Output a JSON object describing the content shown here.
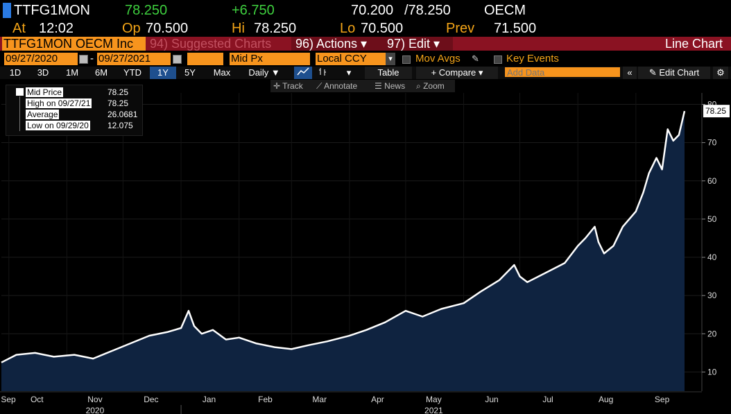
{
  "header": {
    "ticker": "TTFG1MON",
    "last": "78.250",
    "change": "+6.750",
    "bid": "70.200",
    "ask": "/78.250",
    "exchange": "OECM",
    "time_label": "At",
    "time": "12:02",
    "open_label": "Op",
    "open": "70.500",
    "high_label": "Hi",
    "high": "78.250",
    "low_label": "Lo",
    "low": "70.500",
    "prev_label": "Prev",
    "prev": "71.500"
  },
  "menubar": {
    "security": "TTFG1MON OECM Inc",
    "suggested": "94) Suggested Charts",
    "actions": "96) Actions ▾",
    "edit": "97) Edit ▾",
    "title": "Line Chart"
  },
  "settings": {
    "start_date": "09/27/2020",
    "dash": "-",
    "end_date": "09/27/2021",
    "field": "Mid Px",
    "currency": "Local CCY",
    "mov_avgs": "Mov Avgs",
    "key_events": "Key Events"
  },
  "periods": [
    "1D",
    "3D",
    "1M",
    "6M",
    "YTD",
    "1Y",
    "5Y",
    "Max"
  ],
  "frequency": "Daily ▼",
  "toolbar": {
    "table": "Table",
    "compare": "+ Compare ▾",
    "add_data_placeholder": "Add Data",
    "edit_chart": "Edit Chart",
    "track": "Track",
    "annotate": "Annotate",
    "news": "News",
    "zoom": "Zoom"
  },
  "legend": {
    "rows": [
      {
        "label": "Mid Price",
        "value": "78.25"
      },
      {
        "label": "High on 09/27/21",
        "value": "78.25"
      },
      {
        "label": "Average",
        "value": "26.0681"
      },
      {
        "label": "Low on 09/29/20",
        "value": "12.075"
      }
    ]
  },
  "colors": {
    "amber": "#f3a417",
    "positive": "#3ecf3e",
    "menubar": "#8a1222",
    "area_fill": "#0f2340",
    "line": "#ffffff"
  },
  "chart_data": {
    "type": "area",
    "y_ticks": [
      10,
      20,
      30,
      40,
      50,
      60,
      70,
      80
    ],
    "ylim": [
      5,
      83
    ],
    "last_value_label": "78.25",
    "x_tick_labels": [
      "Sep",
      "Oct",
      "Nov",
      "Dec",
      "Jan",
      "Feb",
      "Mar",
      "Apr",
      "May",
      "Jun",
      "Jul",
      "Aug",
      "Sep"
    ],
    "year_labels": [
      "2020",
      "2021"
    ],
    "x_range": [
      "2020-09-27",
      "2021-09-27"
    ],
    "series": [
      {
        "dates": [
          "2020-09-27",
          "2020-10-05",
          "2020-10-15",
          "2020-10-25",
          "2020-11-05",
          "2020-11-15",
          "2020-11-25",
          "2020-12-05",
          "2020-12-15",
          "2020-12-25",
          "2021-01-01",
          "2021-01-05",
          "2021-01-08",
          "2021-01-12",
          "2021-01-18",
          "2021-01-25",
          "2021-02-01",
          "2021-02-10",
          "2021-02-20",
          "2021-03-01",
          "2021-03-10",
          "2021-03-20",
          "2021-04-01",
          "2021-04-10",
          "2021-04-20",
          "2021-05-01",
          "2021-05-10",
          "2021-05-20",
          "2021-06-01",
          "2021-06-10",
          "2021-06-20",
          "2021-06-28",
          "2021-07-01",
          "2021-07-05",
          "2021-07-15",
          "2021-07-25",
          "2021-08-01",
          "2021-08-05",
          "2021-08-10",
          "2021-08-12",
          "2021-08-15",
          "2021-08-20",
          "2021-08-25",
          "2021-09-01",
          "2021-09-05",
          "2021-09-08",
          "2021-09-12",
          "2021-09-15",
          "2021-09-18",
          "2021-09-21",
          "2021-09-24",
          "2021-09-27"
        ],
        "values": [
          12.5,
          14.5,
          15.0,
          14.0,
          14.5,
          13.5,
          15.5,
          17.5,
          19.5,
          20.5,
          21.5,
          26.0,
          22.0,
          20.0,
          21.0,
          18.5,
          19.0,
          17.5,
          16.5,
          16.0,
          17.0,
          18.0,
          19.5,
          21.0,
          23.0,
          26.0,
          24.5,
          26.5,
          28.0,
          31.0,
          34.0,
          38.0,
          35.0,
          33.5,
          36.0,
          38.5,
          43.0,
          45.0,
          48.0,
          44.0,
          41.0,
          43.0,
          48.0,
          52.0,
          57.0,
          62.0,
          66.0,
          63.0,
          73.5,
          70.5,
          72.0,
          78.25
        ]
      }
    ]
  }
}
